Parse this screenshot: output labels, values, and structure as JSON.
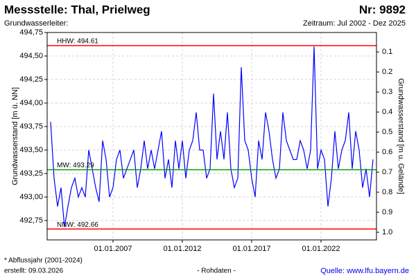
{
  "header": {
    "title": "Messstelle: Thal, Prielweg",
    "number": "Nr: 9892",
    "aquifer": "Grundwasserleiter:",
    "period": "Zeitraum: Jul 2002 - Dez 2025"
  },
  "footer": {
    "note": "* Abflussjahr (2001-2024)",
    "created": "erstellt:  09.03.2026",
    "status": "- Rohdaten -",
    "source": "Quelle: www.lfu.bayern.de"
  },
  "chart_data": {
    "type": "line",
    "y_label": "Grundwasserstand [m ü. NN]",
    "y2_label": "Grundwasserstand [m u. Gelände]",
    "xlim": [
      "01.04.2002",
      "01.01.2026"
    ],
    "xticks": [
      "01.01.2007",
      "01.01.2012",
      "01.01.2017",
      "01.01.2022"
    ],
    "ylim": [
      492.544,
      494.75
    ],
    "yticks": [
      {
        "value": 492.75,
        "label": "492,75"
      },
      {
        "value": 493,
        "label": "493,00"
      },
      {
        "value": 493.25,
        "label": "493,25"
      },
      {
        "value": 493.5,
        "label": "493,50"
      },
      {
        "value": 493.75,
        "label": "493,75"
      },
      {
        "value": 494,
        "label": "494,00"
      },
      {
        "value": 494.25,
        "label": "494,25"
      },
      {
        "value": 494.5,
        "label": "494,50"
      },
      {
        "value": 494.75,
        "label": "494,75"
      }
    ],
    "y2lim": [
      1.038,
      0.003
    ],
    "y2ticks": [
      0.1,
      0.2,
      0.3,
      0.4,
      0.5,
      0.6,
      0.7,
      0.8,
      0.9,
      {
        "value": 1,
        "label": "1.0"
      }
    ],
    "grid": true,
    "reference_lines": [
      {
        "label": "HHW: 494.61",
        "value": 494.61,
        "color": "#ff0000"
      },
      {
        "label": "MW: 493.29",
        "value": 493.29,
        "color": "#00a000"
      },
      {
        "label": "NNW: 492.66",
        "value": 492.66,
        "color": "#ff0000"
      }
    ],
    "x": [
      "01.07.2002",
      "01.10.2002",
      "01.01.2003",
      "01.04.2003",
      "01.07.2003",
      "01.10.2003",
      "01.01.2004",
      "01.04.2004",
      "01.07.2004",
      "01.10.2004",
      "01.01.2005",
      "01.04.2005",
      "01.07.2005",
      "01.10.2005",
      "01.01.2006",
      "01.04.2006",
      "01.07.2006",
      "01.10.2006",
      "01.01.2007",
      "01.04.2007",
      "01.07.2007",
      "01.10.2007",
      "01.01.2008",
      "01.04.2008",
      "01.07.2008",
      "01.10.2008",
      "01.01.2009",
      "01.04.2009",
      "01.07.2009",
      "01.10.2009",
      "01.01.2010",
      "01.04.2010",
      "01.07.2010",
      "01.10.2010",
      "01.01.2011",
      "01.04.2011",
      "01.07.2011",
      "01.10.2011",
      "01.01.2012",
      "01.04.2012",
      "01.07.2012",
      "01.10.2012",
      "01.01.2013",
      "01.04.2013",
      "01.07.2013",
      "01.10.2013",
      "01.01.2014",
      "01.04.2014",
      "01.07.2014",
      "01.10.2014",
      "01.01.2015",
      "01.04.2015",
      "01.07.2015",
      "01.10.2015",
      "01.01.2016",
      "01.04.2016",
      "01.07.2016",
      "01.10.2016",
      "01.01.2017",
      "01.04.2017",
      "01.07.2017",
      "01.10.2017",
      "01.01.2018",
      "01.04.2018",
      "01.07.2018",
      "01.10.2018",
      "01.01.2019",
      "01.04.2019",
      "01.07.2019",
      "01.10.2019",
      "01.01.2020",
      "01.04.2020",
      "01.07.2020",
      "01.10.2020",
      "01.01.2021",
      "01.04.2021",
      "01.07.2021",
      "01.10.2021",
      "01.01.2022",
      "01.04.2022",
      "01.07.2022",
      "01.10.2022",
      "01.01.2023",
      "01.04.2023",
      "01.07.2023",
      "01.10.2023",
      "01.01.2024",
      "01.04.2024",
      "01.07.2024",
      "01.10.2024",
      "01.01.2025",
      "01.04.2025",
      "01.07.2025",
      "01.10.2025"
    ],
    "series": [
      {
        "color": "#0000ff",
        "values": [
          493.8,
          493.2,
          492.9,
          493.1,
          492.68,
          492.9,
          493.1,
          493.2,
          493.0,
          493.1,
          493.0,
          493.5,
          493.3,
          493.1,
          492.95,
          493.6,
          493.4,
          493.0,
          493.1,
          493.4,
          493.5,
          493.2,
          493.3,
          493.4,
          493.5,
          493.1,
          493.3,
          493.6,
          493.3,
          493.5,
          493.3,
          493.5,
          493.7,
          493.2,
          493.4,
          493.1,
          493.6,
          493.3,
          493.6,
          493.2,
          493.5,
          493.6,
          493.9,
          493.5,
          493.5,
          493.2,
          493.3,
          494.1,
          493.4,
          493.7,
          493.4,
          493.9,
          493.3,
          493.1,
          493.2,
          494.38,
          493.6,
          493.5,
          493.2,
          493.0,
          493.6,
          493.4,
          493.9,
          493.7,
          493.4,
          493.2,
          493.3,
          493.9,
          493.6,
          493.5,
          493.4,
          493.4,
          493.6,
          493.5,
          493.3,
          493.5,
          494.6,
          493.3,
          493.5,
          493.4,
          492.9,
          493.2,
          493.7,
          493.3,
          493.5,
          493.6,
          493.9,
          493.3,
          493.7,
          493.5,
          493.1,
          493.3,
          493.0,
          493.4
        ]
      }
    ]
  }
}
